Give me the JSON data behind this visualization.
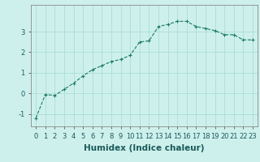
{
  "x": [
    0,
    1,
    2,
    3,
    4,
    5,
    6,
    7,
    8,
    9,
    10,
    11,
    12,
    13,
    14,
    15,
    16,
    17,
    18,
    19,
    20,
    21,
    22,
    23
  ],
  "y": [
    -1.2,
    -0.05,
    -0.1,
    0.2,
    0.5,
    0.85,
    1.15,
    1.35,
    1.55,
    1.65,
    1.85,
    2.5,
    2.55,
    3.25,
    3.35,
    3.5,
    3.5,
    3.25,
    3.15,
    3.05,
    2.85,
    2.85,
    2.6,
    2.6
  ],
  "line_color": "#1a7a6a",
  "marker": "+",
  "background_color": "#cef0ec",
  "grid_color": "#aaddda",
  "xlabel": "Humidex (Indice chaleur)",
  "ylim": [
    -1.6,
    4.3
  ],
  "xlim": [
    -0.5,
    23.5
  ],
  "yticks": [
    -1,
    0,
    1,
    2,
    3
  ],
  "xticks": [
    0,
    1,
    2,
    3,
    4,
    5,
    6,
    7,
    8,
    9,
    10,
    11,
    12,
    13,
    14,
    15,
    16,
    17,
    18,
    19,
    20,
    21,
    22,
    23
  ],
  "tick_labelsize": 6,
  "xlabel_fontsize": 7.5,
  "linewidth": 0.8,
  "markersize": 3.5
}
